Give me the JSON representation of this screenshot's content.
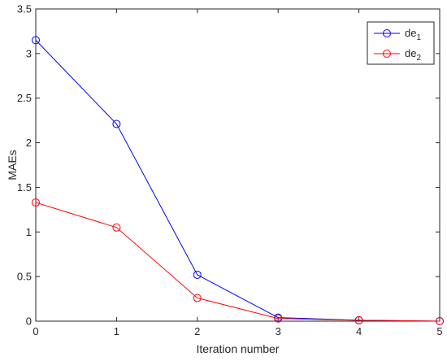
{
  "chart_data": {
    "type": "line",
    "title": "",
    "xlabel": "Iteration number",
    "ylabel": "MAEs",
    "x": [
      0,
      1,
      2,
      3,
      4,
      5
    ],
    "xlim": [
      0,
      5
    ],
    "ylim": [
      0,
      3.5
    ],
    "xticks": [
      0,
      1,
      2,
      3,
      4,
      5
    ],
    "yticks": [
      0,
      0.5,
      1,
      1.5,
      2,
      2.5,
      3,
      3.5
    ],
    "xtick_labels": [
      "0",
      "1",
      "2",
      "3",
      "4",
      "5"
    ],
    "ytick_labels": [
      "0",
      "0.5",
      "1",
      "1.5",
      "2",
      "2.5",
      "3",
      "3.5"
    ],
    "grid": false,
    "legend_position": "top-right",
    "series": [
      {
        "name_base": "de",
        "name_sub": "1",
        "color": "#0000ff",
        "marker": "circle",
        "values": [
          3.15,
          2.21,
          0.52,
          0.04,
          0.01,
          0.0
        ]
      },
      {
        "name_base": "de",
        "name_sub": "2",
        "color": "#ff0000",
        "marker": "circle",
        "values": [
          1.33,
          1.05,
          0.26,
          0.03,
          0.01,
          0.0
        ]
      }
    ]
  }
}
